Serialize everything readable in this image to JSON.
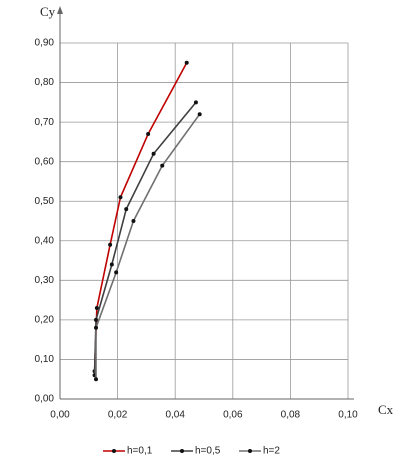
{
  "chart_data": {
    "type": "line",
    "x_label": "Cx",
    "y_label": "Cy",
    "xlim": [
      0,
      0.1
    ],
    "ylim": [
      0,
      0.9
    ],
    "xticks": [
      {
        "value": 0,
        "label": "0,00"
      },
      {
        "value": 0.02,
        "label": "0,02"
      },
      {
        "value": 0.04,
        "label": "0,04"
      },
      {
        "value": 0.06,
        "label": "0,06"
      },
      {
        "value": 0.08,
        "label": "0,08"
      },
      {
        "value": 0.1,
        "label": "0,10"
      }
    ],
    "yticks": [
      {
        "value": 0,
        "label": "0,00"
      },
      {
        "value": 0.1,
        "label": "0,10"
      },
      {
        "value": 0.2,
        "label": "0,20"
      },
      {
        "value": 0.3,
        "label": "0,30"
      },
      {
        "value": 0.4,
        "label": "0,40"
      },
      {
        "value": 0.5,
        "label": "0,50"
      },
      {
        "value": 0.6,
        "label": "0,60"
      },
      {
        "value": 0.7,
        "label": "0,70"
      },
      {
        "value": 0.8,
        "label": "0,80"
      },
      {
        "value": 0.9,
        "label": "0,90"
      }
    ],
    "grid": true,
    "legend": "bottom",
    "series": [
      {
        "name": "h=0,1",
        "color": "#c00000",
        "x": [
          0.012,
          0.0128,
          0.0174,
          0.021,
          0.0306,
          0.044
        ],
        "values": [
          0.07,
          0.23,
          0.39,
          0.51,
          0.67,
          0.85
        ]
      },
      {
        "name": "h=0,5",
        "color": "#404040",
        "x": [
          0.012,
          0.0125,
          0.018,
          0.023,
          0.0325,
          0.0472
        ],
        "values": [
          0.06,
          0.2,
          0.34,
          0.48,
          0.62,
          0.75
        ]
      },
      {
        "name": "h=2",
        "color": "#707070",
        "x": [
          0.0125,
          0.0125,
          0.0195,
          0.0255,
          0.0355,
          0.0485
        ],
        "values": [
          0.05,
          0.18,
          0.32,
          0.45,
          0.59,
          0.72
        ]
      }
    ]
  }
}
